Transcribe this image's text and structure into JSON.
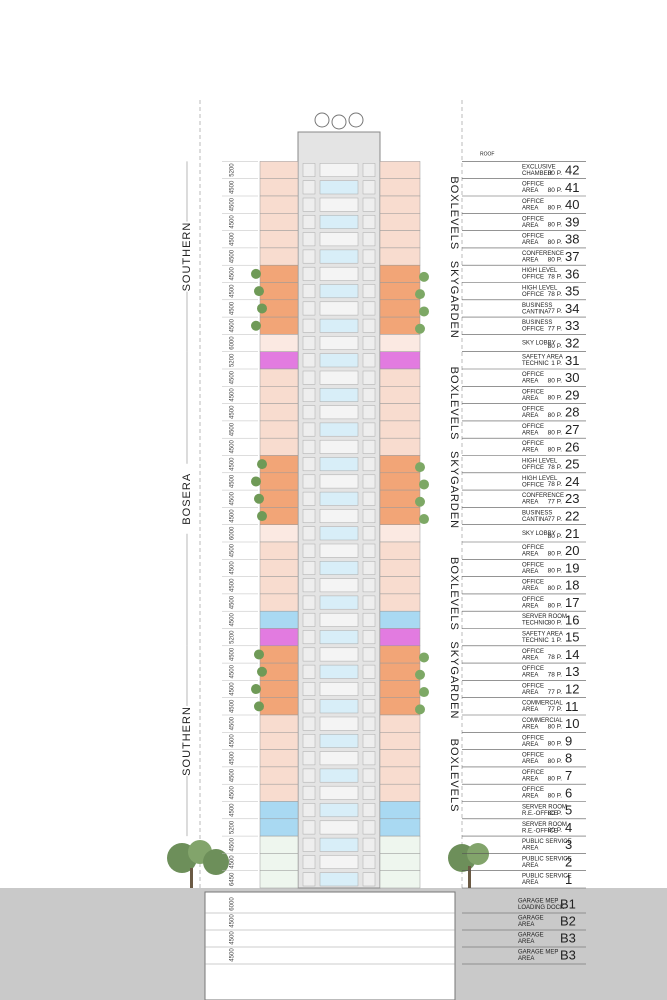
{
  "roof": "ROOF",
  "floors": [
    {
      "number": "42",
      "name": [
        "EXCLUSIVE",
        "CHAMBER"
      ],
      "occupancy": "80 P.",
      "height": "5200",
      "color": "#f8dccf"
    },
    {
      "number": "41",
      "name": [
        "OFFICE",
        "AREA"
      ],
      "occupancy": "80 P.",
      "height": "4500",
      "color": "#f8dccf"
    },
    {
      "number": "40",
      "name": [
        "OFFICE",
        "AREA"
      ],
      "occupancy": "80 P.",
      "height": "4500",
      "color": "#f8dccf"
    },
    {
      "number": "39",
      "name": [
        "OFFICE",
        "AREA"
      ],
      "occupancy": "80 P.",
      "height": "4500",
      "color": "#f8dccf"
    },
    {
      "number": "38",
      "name": [
        "OFFICE",
        "AREA"
      ],
      "occupancy": "80 P.",
      "height": "4500",
      "color": "#f8dccf"
    },
    {
      "number": "37",
      "name": [
        "CONFERENCE",
        "AREA"
      ],
      "occupancy": "80 P.",
      "height": "4500",
      "color": "#f8dccf"
    },
    {
      "number": "36",
      "name": [
        "HIGH LEVEL",
        "OFFICE"
      ],
      "occupancy": "78 P.",
      "height": "4500",
      "color": "#f2a577"
    },
    {
      "number": "35",
      "name": [
        "HIGH LEVEL",
        "OFFICE"
      ],
      "occupancy": "78 P.",
      "height": "4500",
      "color": "#f2a577"
    },
    {
      "number": "34",
      "name": [
        "BUSINESS",
        "CANTINA"
      ],
      "occupancy": "77 P.",
      "height": "4500",
      "color": "#f2a577"
    },
    {
      "number": "33",
      "name": [
        "BUSINESS",
        "OFFICE"
      ],
      "occupancy": "77 P.",
      "height": "4500",
      "color": "#f2a577"
    },
    {
      "number": "32",
      "name": [
        "SKY LOBBY"
      ],
      "occupancy": "80 P.",
      "height": "6000",
      "color": "#fbe9e2"
    },
    {
      "number": "31",
      "name": [
        "SAFETY AREA",
        "TECHNIC"
      ],
      "occupancy": "1 P.",
      "height": "5200",
      "color": "#e27be0"
    },
    {
      "number": "30",
      "name": [
        "OFFICE",
        "AREA"
      ],
      "occupancy": "80 P.",
      "height": "4500",
      "color": "#f8dccf"
    },
    {
      "number": "29",
      "name": [
        "OFFICE",
        "AREA"
      ],
      "occupancy": "80 P.",
      "height": "4500",
      "color": "#f8dccf"
    },
    {
      "number": "28",
      "name": [
        "OFFICE",
        "AREA"
      ],
      "occupancy": "80 P.",
      "height": "4500",
      "color": "#f8dccf"
    },
    {
      "number": "27",
      "name": [
        "OFFICE",
        "AREA"
      ],
      "occupancy": "80 P.",
      "height": "4500",
      "color": "#f8dccf"
    },
    {
      "number": "26",
      "name": [
        "OFFICE",
        "AREA"
      ],
      "occupancy": "80 P.",
      "height": "4500",
      "color": "#f8dccf"
    },
    {
      "number": "25",
      "name": [
        "HIGH LEVEL",
        "OFFICE"
      ],
      "occupancy": "78 P.",
      "height": "4500",
      "color": "#f2a577"
    },
    {
      "number": "24",
      "name": [
        "HIGH LEVEL",
        "OFFICE"
      ],
      "occupancy": "78 P.",
      "height": "4500",
      "color": "#f2a577"
    },
    {
      "number": "23",
      "name": [
        "CONFERENCE",
        "AREA"
      ],
      "occupancy": "77 P.",
      "height": "4500",
      "color": "#f2a577"
    },
    {
      "number": "22",
      "name": [
        "BUSINESS",
        "CANTINA"
      ],
      "occupancy": "77 P.",
      "height": "4500",
      "color": "#f2a577"
    },
    {
      "number": "21",
      "name": [
        "SKY LOBBY"
      ],
      "occupancy": "80 P.",
      "height": "6000",
      "color": "#fbe9e2"
    },
    {
      "number": "20",
      "name": [
        "OFFICE",
        "AREA"
      ],
      "occupancy": "80 P.",
      "height": "4500",
      "color": "#f8dccf"
    },
    {
      "number": "19",
      "name": [
        "OFFICE",
        "AREA"
      ],
      "occupancy": "80 P.",
      "height": "4500",
      "color": "#f8dccf"
    },
    {
      "number": "18",
      "name": [
        "OFFICE",
        "AREA"
      ],
      "occupancy": "80 P.",
      "height": "4500",
      "color": "#f8dccf"
    },
    {
      "number": "17",
      "name": [
        "OFFICE",
        "AREA"
      ],
      "occupancy": "80 P.",
      "height": "4500",
      "color": "#f8dccf"
    },
    {
      "number": "16",
      "name": [
        "SERVER ROOM",
        "TECHNIC"
      ],
      "occupancy": "80 P.",
      "height": "4500",
      "color": "#a9d9f2"
    },
    {
      "number": "15",
      "name": [
        "SAFETY AREA",
        "TECHNIC"
      ],
      "occupancy": "1 P.",
      "height": "5200",
      "color": "#e27be0"
    },
    {
      "number": "14",
      "name": [
        "OFFICE",
        "AREA"
      ],
      "occupancy": "78 P.",
      "height": "4500",
      "color": "#f2a577"
    },
    {
      "number": "13",
      "name": [
        "OFFICE",
        "AREA"
      ],
      "occupancy": "78 P.",
      "height": "4500",
      "color": "#f2a577"
    },
    {
      "number": "12",
      "name": [
        "OFFICE",
        "AREA"
      ],
      "occupancy": "77 P.",
      "height": "4500",
      "color": "#f2a577"
    },
    {
      "number": "11",
      "name": [
        "COMMERCIAL",
        "AREA"
      ],
      "occupancy": "77 P.",
      "height": "4500",
      "color": "#f2a577"
    },
    {
      "number": "10",
      "name": [
        "COMMERCIAL",
        "AREA"
      ],
      "occupancy": "80 P.",
      "height": "4500",
      "color": "#f8dccf"
    },
    {
      "number": "9",
      "name": [
        "OFFICE",
        "AREA"
      ],
      "occupancy": "80 P.",
      "height": "4500",
      "color": "#f8dccf"
    },
    {
      "number": "8",
      "name": [
        "OFFICE",
        "AREA"
      ],
      "occupancy": "80 P.",
      "height": "4500",
      "color": "#f8dccf"
    },
    {
      "number": "7",
      "name": [
        "OFFICE",
        "AREA"
      ],
      "occupancy": "80 P.",
      "height": "4500",
      "color": "#f8dccf"
    },
    {
      "number": "6",
      "name": [
        "OFFICE",
        "AREA"
      ],
      "occupancy": "80 P.",
      "height": "4500",
      "color": "#f8dccf"
    },
    {
      "number": "5",
      "name": [
        "SERVER ROOM",
        "R.E.-OFFICE"
      ],
      "occupancy": "80 P.",
      "height": "4500",
      "color": "#a9d9f2"
    },
    {
      "number": "4",
      "name": [
        "SERVER ROOM",
        "R.E.-OFFICE"
      ],
      "occupancy": "80 P.",
      "height": "5200",
      "color": "#a9d9f2"
    },
    {
      "number": "3",
      "name": [
        "PUBLIC SERVICE",
        "AREA"
      ],
      "height": "4500",
      "color": "#eef6ee"
    },
    {
      "number": "2",
      "name": [
        "PUBLIC SERVICE",
        "AREA"
      ],
      "height": "4500",
      "color": "#eef6ee"
    },
    {
      "number": "1",
      "name": [
        "PUBLIC SERVICE",
        "AREA"
      ],
      "height": "6450",
      "color": "#eef6ee"
    }
  ],
  "basements": [
    {
      "number": "B1",
      "name": [
        "GARAGE MEP",
        "LOADING DOCK"
      ],
      "height": "6000"
    },
    {
      "number": "B2",
      "name": [
        "GARAGE",
        "AREA"
      ],
      "height": "4500"
    },
    {
      "number": "B3",
      "name": [
        "GARAGE",
        "AREA"
      ],
      "height": "4500"
    },
    {
      "number": "B3",
      "name": [
        "GARAGE MEP",
        "AREA"
      ],
      "height": "4500"
    }
  ],
  "zones": [
    "BOXLEVELS",
    "SKYGARDEN",
    "BOXLEVELS",
    "SKYGARDEN",
    "BOXLEVELS",
    "SKYGARDEN",
    "BOXLEVELS"
  ],
  "districts": [
    "SOUTHERN",
    "BOSERA",
    "SOUTHERN"
  ]
}
